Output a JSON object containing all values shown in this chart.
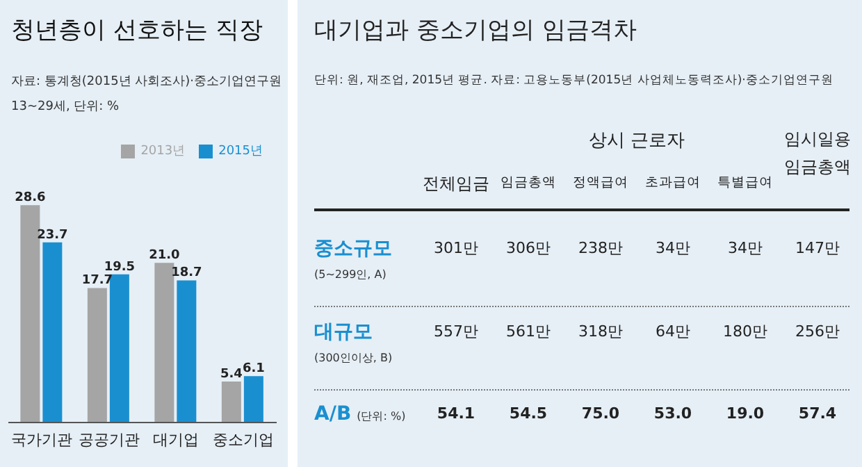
{
  "chart_data": [
    {
      "type": "bar",
      "title": "청년층이 선호하는 직장",
      "subtitle": "자료: 통계청(2015년 사회조사)·중소기업연구원",
      "annotations": [
        "13~29세, 단위: %"
      ],
      "categories": [
        "국가기관",
        "공공기관",
        "대기업",
        "중소기업"
      ],
      "series": [
        {
          "name": "2013년",
          "color": "#a5a5a5",
          "values": [
            28.6,
            17.7,
            21.0,
            5.4
          ],
          "value_labels": [
            "28.6",
            "17.7",
            "21.0",
            "5.4"
          ]
        },
        {
          "name": "2015년",
          "color": "#1a8fd0",
          "values": [
            23.7,
            19.5,
            18.7,
            6.1
          ],
          "value_labels": [
            "23.7",
            "19.5",
            "18.7",
            "6.1"
          ]
        }
      ],
      "legend": "top right",
      "tick_labels": "x",
      "grid": false
    },
    {
      "type": "other",
      "title": "대기업과 중소기업의 임금격차",
      "subtitle": "단위: 원, 재조업, 2015년 평균. 자료: 고용노동부(2015년 사업체노동력조사)·중소기업연구원",
      "categories": [
        "전체임금",
        "임금총액",
        "정액급여",
        "초과급여",
        "특별급여",
        "임시일용 임금총액"
      ],
      "y_categories": [
        "중소규모",
        "대규모",
        "A/B"
      ],
      "cell_labels": [
        [
          "301만",
          "306만",
          "238만",
          "34만",
          "34만",
          "147만"
        ],
        [
          "557만",
          "561만",
          "318만",
          "64만",
          "180만",
          "256만"
        ],
        [
          "54.1",
          "54.5",
          "75.0",
          "53.0",
          "19.0",
          "57.4"
        ]
      ],
      "annotations": [
        "상시 근로자",
        "(5~299인, A)",
        "(300인이상, B)",
        "(단위: %)"
      ]
    }
  ]
}
